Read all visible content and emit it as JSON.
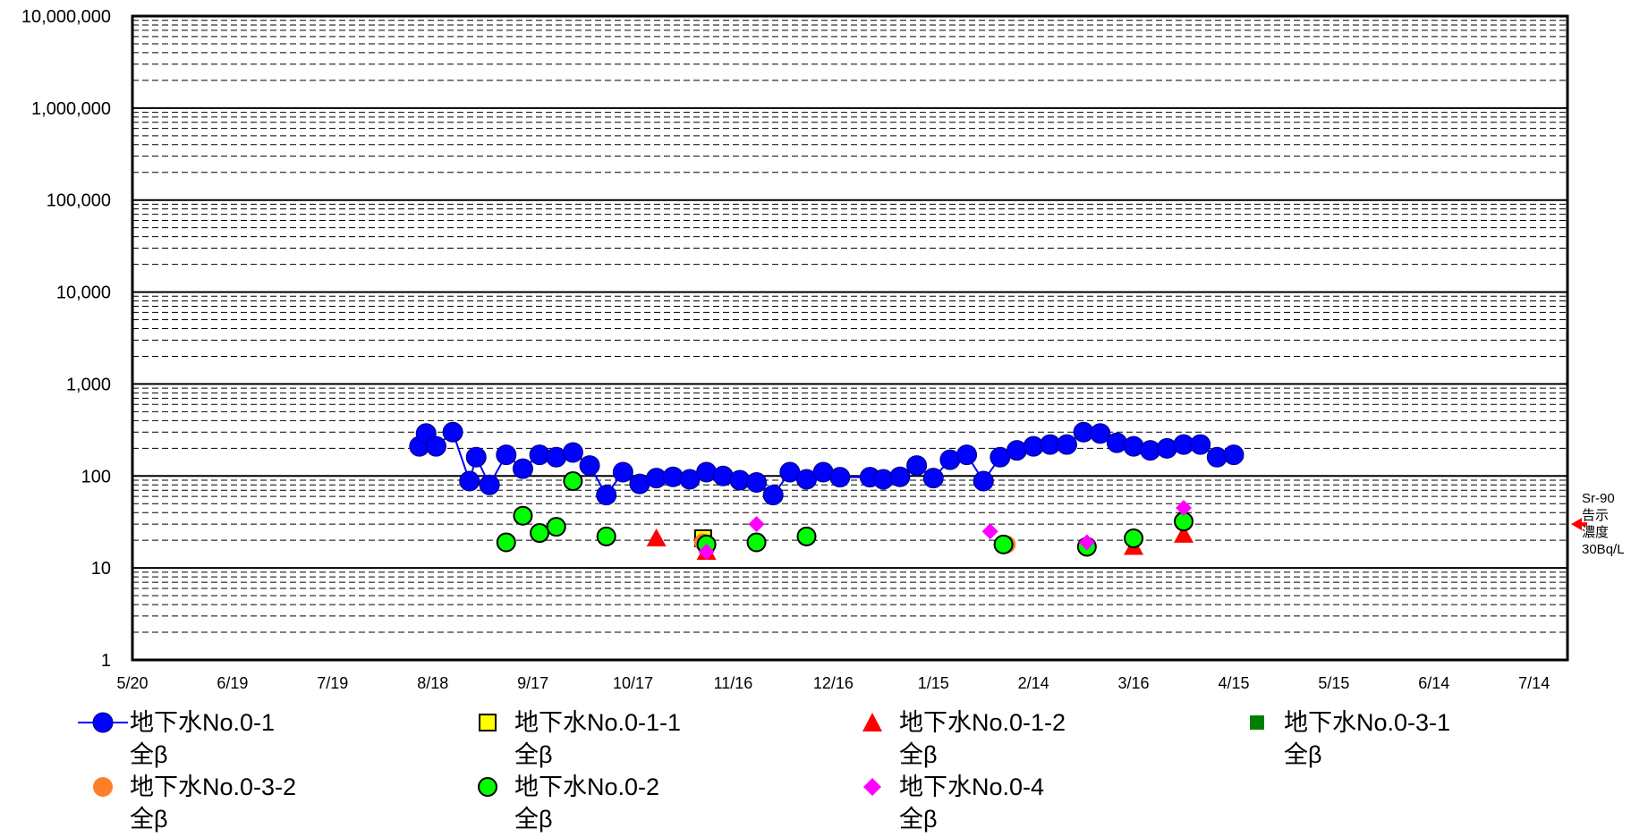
{
  "chart_data": {
    "type": "scatter",
    "yscale": "log",
    "ylim": [
      1,
      10000000
    ],
    "y_ticks": [
      "1",
      "10",
      "100",
      "1,000",
      "10,000",
      "100,000",
      "1,000,000",
      "10,000,000"
    ],
    "x_ticks": [
      "5/20",
      "6/19",
      "7/19",
      "8/18",
      "9/17",
      "10/17",
      "11/16",
      "12/16",
      "1/15",
      "2/14",
      "3/16",
      "4/15",
      "5/15",
      "6/14",
      "7/14"
    ],
    "x_range_days": [
      0,
      430
    ],
    "grid": "major solid, minor dashed",
    "reference": {
      "label_lines": [
        "Sr-90",
        "告示",
        "濃度",
        "30Bq/L"
      ],
      "value": 30,
      "color": "#ff0000"
    },
    "series": [
      {
        "name": "地下水No.0-1 全β",
        "line": true,
        "color": "#0000ff",
        "marker": "circle",
        "points": [
          [
            86,
            210
          ],
          [
            88,
            290
          ],
          [
            91,
            210
          ],
          [
            96,
            300
          ],
          [
            101,
            88
          ],
          [
            103,
            160
          ],
          [
            107,
            80
          ],
          [
            112,
            170
          ],
          [
            117,
            120
          ],
          [
            122,
            170
          ],
          [
            127,
            160
          ],
          [
            132,
            180
          ],
          [
            137,
            130
          ],
          [
            142,
            62
          ],
          [
            147,
            110
          ],
          [
            152,
            82
          ],
          [
            157,
            95
          ],
          [
            162,
            98
          ],
          [
            167,
            92
          ],
          [
            172,
            110
          ],
          [
            177,
            100
          ],
          [
            182,
            90
          ],
          [
            187,
            85
          ],
          [
            192,
            62
          ],
          [
            197,
            110
          ],
          [
            202,
            92
          ],
          [
            207,
            110
          ],
          [
            212,
            97
          ],
          [
            221,
            97
          ],
          [
            225,
            92
          ],
          [
            230,
            98
          ],
          [
            235,
            130
          ],
          [
            240,
            95
          ],
          [
            245,
            150
          ],
          [
            250,
            170
          ],
          [
            255,
            88
          ],
          [
            260,
            160
          ],
          [
            265,
            190
          ],
          [
            270,
            210
          ],
          [
            275,
            220
          ],
          [
            280,
            220
          ],
          [
            285,
            300
          ],
          [
            290,
            290
          ],
          [
            295,
            230
          ],
          [
            300,
            210
          ],
          [
            305,
            190
          ],
          [
            310,
            200
          ],
          [
            315,
            220
          ],
          [
            320,
            220
          ],
          [
            325,
            160
          ],
          [
            330,
            170
          ]
        ]
      },
      {
        "name": "地下水No.0-1-1 全β",
        "line": false,
        "color": "#ffff00",
        "marker": "square",
        "points": [
          [
            171,
            21
          ]
        ]
      },
      {
        "name": "地下水No.0-1-2 全β",
        "line": false,
        "color": "#ff0000",
        "marker": "triangle",
        "points": [
          [
            157,
            21
          ],
          [
            172,
            15
          ],
          [
            300,
            17
          ],
          [
            315,
            23
          ]
        ]
      },
      {
        "name": "地下水No.0-3-1 全β",
        "line": false,
        "color": "#008000",
        "marker": "square",
        "points": []
      },
      {
        "name": "地下水No.0-3-2 全β",
        "line": false,
        "color": "#ff7f27",
        "marker": "circle",
        "points": [
          [
            171,
            19
          ],
          [
            262,
            18
          ]
        ]
      },
      {
        "name": "地下水No.0-2 全β",
        "line": false,
        "color": "#00ff00",
        "marker": "circle",
        "points": [
          [
            112,
            19
          ],
          [
            117,
            37
          ],
          [
            122,
            24
          ],
          [
            127,
            28
          ],
          [
            132,
            88
          ],
          [
            142,
            22
          ],
          [
            172,
            18
          ],
          [
            187,
            19
          ],
          [
            202,
            22
          ],
          [
            261,
            18
          ],
          [
            286,
            17
          ],
          [
            300,
            21
          ],
          [
            315,
            32
          ]
        ]
      },
      {
        "name": "地下水No.0-4 全β",
        "line": false,
        "color": "#ff00ff",
        "marker": "diamond",
        "points": [
          [
            172,
            15
          ],
          [
            187,
            30
          ],
          [
            257,
            25
          ],
          [
            286,
            19
          ],
          [
            315,
            45
          ]
        ]
      }
    ]
  },
  "legend": {
    "items": [
      {
        "name": "地下水No.0-1",
        "sub": "全β"
      },
      {
        "name": "地下水No.0-1-1",
        "sub": "全β"
      },
      {
        "name": "地下水No.0-1-2",
        "sub": "全β"
      },
      {
        "name": "地下水No.0-3-1",
        "sub": "全β"
      },
      {
        "name": "地下水No.0-3-2",
        "sub": "全β"
      },
      {
        "name": "地下水No.0-2",
        "sub": "全β"
      },
      {
        "name": "地下水No.0-4",
        "sub": "全β"
      }
    ]
  }
}
